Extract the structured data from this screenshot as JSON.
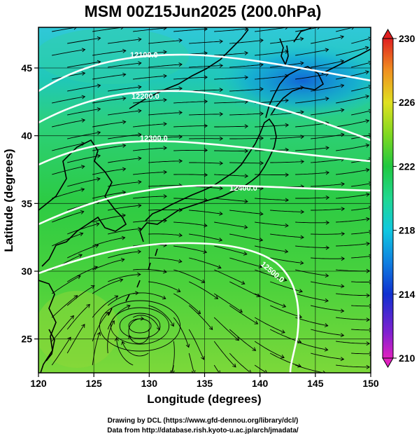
{
  "title": "MSM 00Z15Jun2025 (200.0hPa)",
  "x_axis": {
    "label": "Longitude (degrees)",
    "ticks": [
      "120",
      "125",
      "130",
      "135",
      "140",
      "145",
      "150"
    ],
    "range": [
      120,
      150
    ]
  },
  "y_axis": {
    "label": "Latitude  (degrees)",
    "ticks": [
      "25",
      "30",
      "35",
      "40",
      "45"
    ],
    "range": [
      22.5,
      48
    ]
  },
  "colorbar": {
    "ticks": [
      "230",
      "226",
      "222",
      "218",
      "214",
      "210"
    ],
    "range": [
      210,
      230
    ],
    "colors": [
      "#e020c0",
      "#7020d0",
      "#1030d0",
      "#1080e0",
      "#10c8e0",
      "#20d890",
      "#20c840",
      "#60d020",
      "#b0e020",
      "#e0e020",
      "#f0b020",
      "#f07020",
      "#e02020"
    ]
  },
  "contours": [
    {
      "label": "12100.0",
      "value": 12100
    },
    {
      "label": "12200.0",
      "value": 12200
    },
    {
      "label": "12300.0",
      "value": 12300
    },
    {
      "label": "12400.0",
      "value": 12400
    },
    {
      "label": "12500.0",
      "value": 12500
    }
  ],
  "credits": {
    "line1": "Drawing by DCL (https://www.gfd-dennou.org/library/dcl/)",
    "line2": "Data from http://database.rish.kyoto-u.ac.jp/arch/jmadata/"
  }
}
